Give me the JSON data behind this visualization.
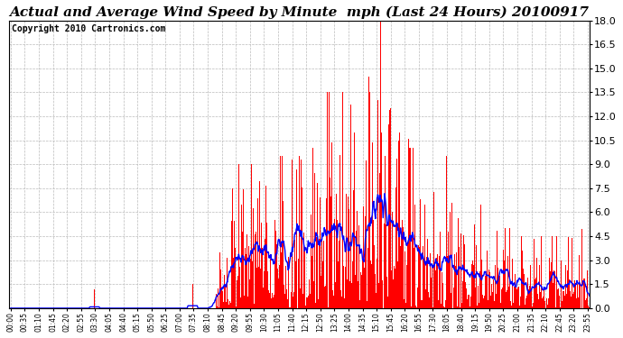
{
  "title": "Actual and Average Wind Speed by Minute  mph (Last 24 Hours) 20100917",
  "copyright": "Copyright 2010 Cartronics.com",
  "ylim": [
    0,
    18.0
  ],
  "yticks": [
    0.0,
    1.5,
    3.0,
    4.5,
    6.0,
    7.5,
    9.0,
    10.5,
    12.0,
    13.5,
    15.0,
    16.5,
    18.0
  ],
  "bar_color": "#ff0000",
  "line_color": "#0000ff",
  "background_color": "#ffffff",
  "grid_color": "#bbbbbb",
  "title_fontsize": 11,
  "copyright_fontsize": 7,
  "tick_interval_minutes": 35,
  "avg_window": 25
}
